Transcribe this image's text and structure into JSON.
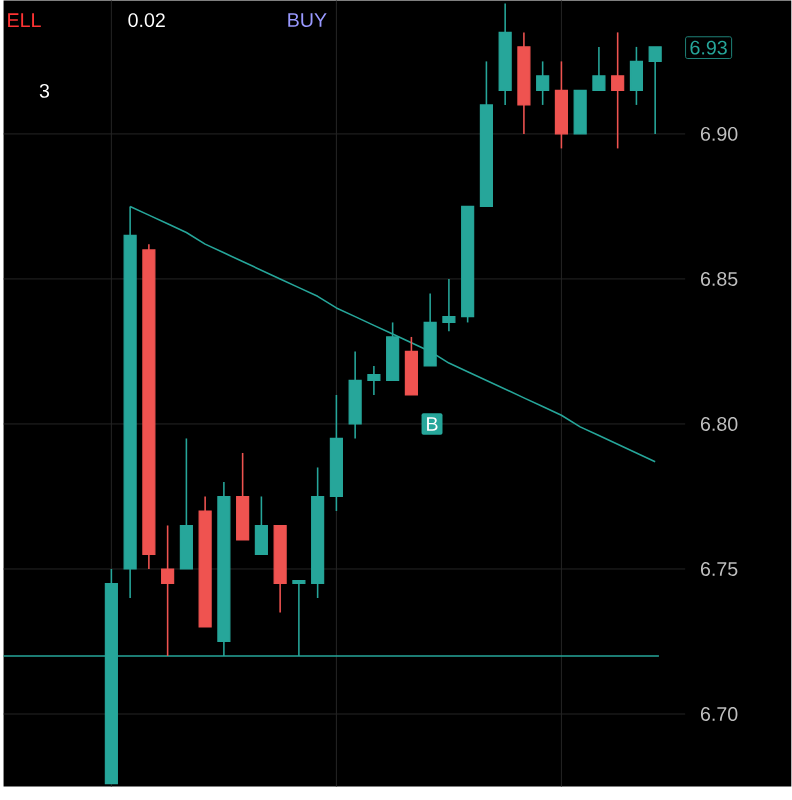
{
  "chart_data": {
    "type": "candlestick",
    "categories": [
      null,
      null,
      null,
      null,
      null,
      null,
      null,
      null,
      null,
      null,
      null,
      null,
      null,
      null,
      null,
      null,
      null,
      null,
      null,
      null,
      null,
      null,
      null,
      null,
      null,
      null,
      null,
      null,
      null,
      null
    ],
    "ohlc": [
      [
        6.676,
        6.75,
        6.676,
        6.745
      ],
      [
        6.75,
        6.875,
        6.74,
        6.865
      ],
      [
        6.86,
        6.862,
        6.75,
        6.755
      ],
      [
        6.75,
        6.765,
        6.72,
        6.745
      ],
      [
        6.75,
        6.795,
        6.75,
        6.765
      ],
      [
        6.77,
        6.775,
        6.73,
        6.73
      ],
      [
        6.725,
        6.78,
        6.72,
        6.775
      ],
      [
        6.775,
        6.79,
        6.76,
        6.76
      ],
      [
        6.755,
        6.775,
        6.755,
        6.765
      ],
      [
        6.765,
        6.765,
        6.735,
        6.745
      ],
      [
        6.745,
        6.746,
        6.72,
        6.746
      ],
      [
        6.745,
        6.785,
        6.74,
        6.775
      ],
      [
        6.775,
        6.81,
        6.77,
        6.795
      ],
      [
        6.8,
        6.825,
        6.795,
        6.815
      ],
      [
        6.815,
        6.82,
        6.81,
        6.817
      ],
      [
        6.815,
        6.835,
        6.815,
        6.83
      ],
      [
        6.825,
        6.83,
        6.81,
        6.81
      ],
      [
        6.82,
        6.845,
        6.82,
        6.835
      ],
      [
        6.835,
        6.85,
        6.832,
        6.837
      ],
      [
        6.837,
        6.875,
        6.835,
        6.875
      ],
      [
        6.875,
        6.925,
        6.875,
        6.91
      ],
      [
        6.915,
        6.945,
        6.91,
        6.935
      ],
      [
        6.93,
        6.935,
        6.9,
        6.91
      ],
      [
        6.915,
        6.925,
        6.91,
        6.92
      ],
      [
        6.915,
        6.925,
        6.895,
        6.9
      ],
      [
        6.9,
        6.915,
        6.9,
        6.915
      ],
      [
        6.915,
        6.93,
        6.915,
        6.92
      ],
      [
        6.92,
        6.935,
        6.895,
        6.915
      ],
      [
        6.915,
        6.93,
        6.91,
        6.925
      ],
      [
        6.925,
        6.93,
        6.9,
        6.93
      ]
    ],
    "colors": [
      "#26a69a",
      "#26a69a",
      "#ef5350",
      "#ef5350",
      "#26a69a",
      "#ef5350",
      "#26a69a",
      "#ef5350",
      "#26a69a",
      "#ef5350",
      "#26a69a",
      "#26a69a",
      "#26a69a",
      "#26a69a",
      "#26a69a",
      "#26a69a",
      "#ef5350",
      "#26a69a",
      "#26a69a",
      "#26a69a",
      "#26a69a",
      "#26a69a",
      "#ef5350",
      "#26a69a",
      "#ef5350",
      "#26a69a",
      "#26a69a",
      "#ef5350",
      "#26a69a",
      "#26a69a"
    ],
    "series": [
      {
        "type": "line",
        "color": "#26a69a",
        "values": [
          null,
          6.875,
          6.872,
          6.869,
          6.866,
          6.862,
          6.859,
          6.856,
          6.853,
          6.85,
          6.847,
          6.844,
          6.84,
          6.837,
          6.834,
          6.831,
          6.828,
          6.825,
          6.821,
          6.818,
          6.815,
          6.812,
          6.809,
          6.806,
          6.803,
          6.799,
          6.796,
          6.793,
          6.79,
          6.787
        ]
      }
    ],
    "ref_lines": [
      {
        "axis": "y",
        "value": 6.72,
        "color": "#26a69a"
      }
    ],
    "ylim": [
      6.675,
      6.946
    ],
    "yticks": [
      {
        "value": 6.7,
        "label": "6.70"
      },
      {
        "value": 6.75,
        "label": "6.75"
      },
      {
        "value": 6.8,
        "label": "6.80"
      },
      {
        "value": 6.85,
        "label": "6.85"
      },
      {
        "value": 6.9,
        "label": "6.90"
      }
    ],
    "grid": true,
    "tick_labels": "y",
    "annotations": [
      "ELL",
      "0.02",
      "BUY",
      "3",
      {
        "text": "B",
        "y": 6.8
      },
      "6.93"
    ]
  }
}
